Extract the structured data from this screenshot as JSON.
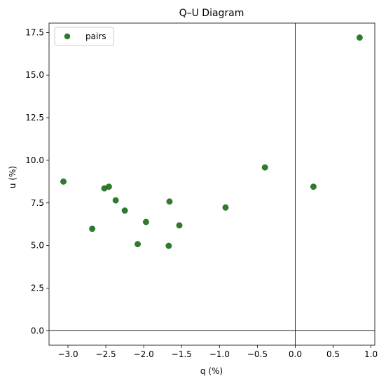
{
  "chart_data": {
    "type": "scatter",
    "title": "Q–U Diagram",
    "xlabel": "q (%)",
    "ylabel": "u (%)",
    "xlim": [
      -3.25,
      1.05
    ],
    "ylim": [
      -0.85,
      18.05
    ],
    "xticks": [
      -3.0,
      -2.5,
      -2.0,
      -1.5,
      -1.0,
      -0.5,
      0.0,
      0.5,
      1.0
    ],
    "xtick_labels": [
      "−3.0",
      "−2.5",
      "−2.0",
      "−1.5",
      "−1.0",
      "−0.5",
      "0.0",
      "0.5",
      "1.0"
    ],
    "yticks": [
      0.0,
      2.5,
      5.0,
      7.5,
      10.0,
      12.5,
      15.0,
      17.5
    ],
    "ytick_labels": [
      "0.0",
      "2.5",
      "5.0",
      "7.5",
      "10.0",
      "12.5",
      "15.0",
      "17.5"
    ],
    "reference_lines": {
      "x": 0,
      "y": 0
    },
    "legend": {
      "position": "top-left",
      "entries": [
        "pairs"
      ]
    },
    "series": [
      {
        "name": "pairs",
        "color": "#1a6b1a",
        "points": [
          {
            "x": -3.06,
            "y": 8.75
          },
          {
            "x": -2.68,
            "y": 5.98
          },
          {
            "x": -2.52,
            "y": 8.35
          },
          {
            "x": -2.46,
            "y": 8.45
          },
          {
            "x": -2.37,
            "y": 7.65
          },
          {
            "x": -2.25,
            "y": 7.05
          },
          {
            "x": -2.08,
            "y": 5.08
          },
          {
            "x": -1.97,
            "y": 6.38
          },
          {
            "x": -1.67,
            "y": 4.98
          },
          {
            "x": -1.66,
            "y": 7.58
          },
          {
            "x": -1.53,
            "y": 6.18
          },
          {
            "x": -0.92,
            "y": 7.23
          },
          {
            "x": -0.4,
            "y": 9.58
          },
          {
            "x": 0.24,
            "y": 8.45
          },
          {
            "x": 0.85,
            "y": 17.2
          }
        ]
      }
    ]
  }
}
